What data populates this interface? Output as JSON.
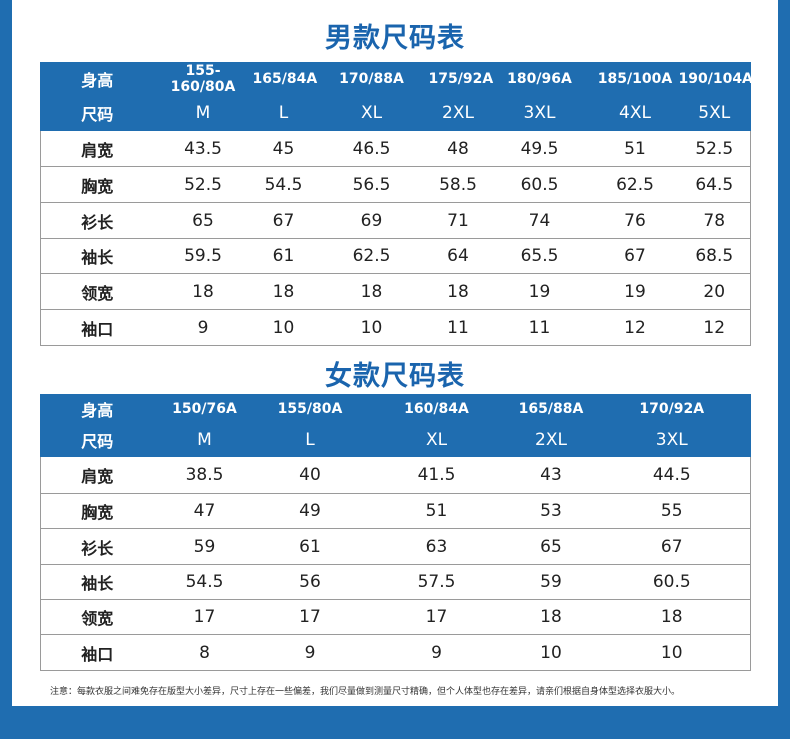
{
  "colors": {
    "header_blue": "#1f6db0",
    "title_blue": "#1a64ad"
  },
  "men": {
    "title": "男款尺码表",
    "height_label": "身高",
    "size_label": "尺码",
    "heights": [
      "155-160/80A",
      "165/84A",
      "170/88A",
      "175/92A",
      "180/96A",
      "185/100A",
      "190/104A"
    ],
    "sizes": [
      "M",
      "L",
      "XL",
      "2XL",
      "3XL",
      "4XL",
      "5XL"
    ],
    "rows": [
      {
        "label": "肩宽",
        "values": [
          "43.5",
          "45",
          "46.5",
          "48",
          "49.5",
          "51",
          "52.5"
        ]
      },
      {
        "label": "胸宽",
        "values": [
          "52.5",
          "54.5",
          "56.5",
          "58.5",
          "60.5",
          "62.5",
          "64.5"
        ]
      },
      {
        "label": "衫长",
        "values": [
          "65",
          "67",
          "69",
          "71",
          "74",
          "76",
          "78"
        ]
      },
      {
        "label": "袖长",
        "values": [
          "59.5",
          "61",
          "62.5",
          "64",
          "65.5",
          "67",
          "68.5"
        ]
      },
      {
        "label": "领宽",
        "values": [
          "18",
          "18",
          "18",
          "18",
          "19",
          "19",
          "20"
        ]
      },
      {
        "label": "袖口",
        "values": [
          "9",
          "10",
          "10",
          "11",
          "11",
          "12",
          "12"
        ]
      }
    ]
  },
  "women": {
    "title": "女款尺码表",
    "height_label": "身高",
    "size_label": "尺码",
    "heights": [
      "150/76A",
      "155/80A",
      "160/84A",
      "165/88A",
      "170/92A"
    ],
    "sizes": [
      "M",
      "L",
      "XL",
      "2XL",
      "3XL"
    ],
    "rows": [
      {
        "label": "肩宽",
        "values": [
          "38.5",
          "40",
          "41.5",
          "43",
          "44.5"
        ]
      },
      {
        "label": "胸宽",
        "values": [
          "47",
          "49",
          "51",
          "53",
          "55"
        ]
      },
      {
        "label": "衫长",
        "values": [
          "59",
          "61",
          "63",
          "65",
          "67"
        ]
      },
      {
        "label": "袖长",
        "values": [
          "54.5",
          "56",
          "57.5",
          "59",
          "60.5"
        ]
      },
      {
        "label": "领宽",
        "values": [
          "17",
          "17",
          "17",
          "18",
          "18"
        ]
      },
      {
        "label": "袖口",
        "values": [
          "8",
          "9",
          "9",
          "10",
          "10"
        ]
      }
    ]
  },
  "note": "注意：每款衣服之间难免存在版型大小差异，尺寸上存在一些偏差，我们尽量做到测量尺寸精确，但个人体型也存在差异，请亲们根据自身体型选择衣服大小。"
}
